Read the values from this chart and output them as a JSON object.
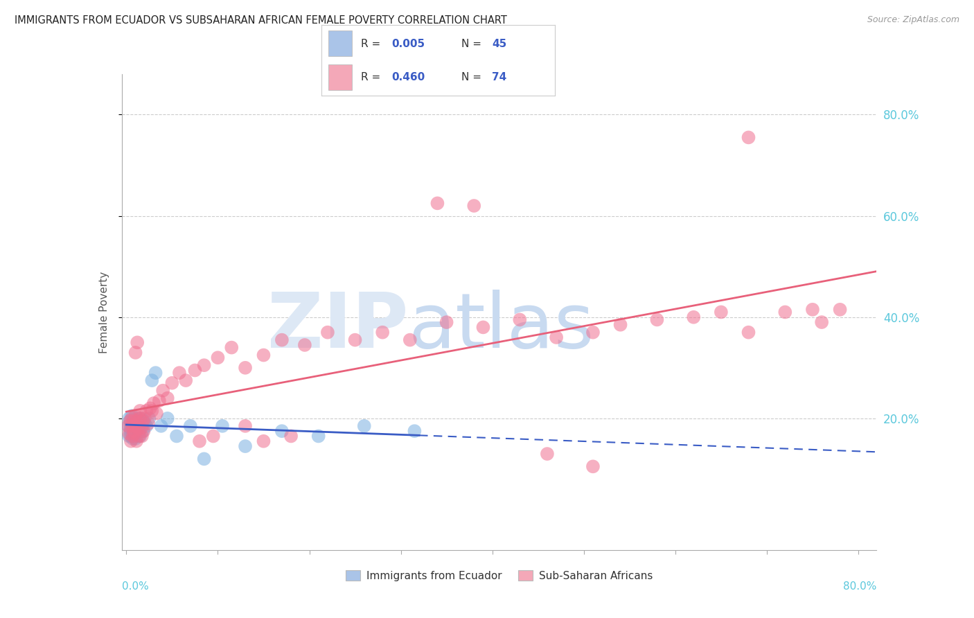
{
  "title": "IMMIGRANTS FROM ECUADOR VS SUBSAHARAN AFRICAN FEMALE POVERTY CORRELATION CHART",
  "source": "Source: ZipAtlas.com",
  "ylabel": "Female Poverty",
  "ytick_vals": [
    0.2,
    0.4,
    0.6,
    0.8
  ],
  "xlim": [
    -0.005,
    0.82
  ],
  "ylim": [
    -0.06,
    0.88
  ],
  "legend_item1_color": "#aac4e8",
  "legend_item2_color": "#f4a8b8",
  "ecuador_color": "#7ab0e0",
  "subsaharan_color": "#f07090",
  "ecuador_line_color": "#3a5cc5",
  "subsaharan_line_color": "#e8607a",
  "right_tick_color": "#5bc8dc",
  "left_tick_color": "#5bc8dc",
  "watermark_zip_color": "#dde8f5",
  "watermark_atlas_color": "#c8daf0",
  "ecuador_x": [
    0.002,
    0.003,
    0.003,
    0.004,
    0.004,
    0.005,
    0.005,
    0.006,
    0.006,
    0.007,
    0.007,
    0.008,
    0.008,
    0.009,
    0.009,
    0.01,
    0.01,
    0.011,
    0.011,
    0.012,
    0.012,
    0.013,
    0.014,
    0.015,
    0.015,
    0.016,
    0.017,
    0.018,
    0.019,
    0.02,
    0.022,
    0.025,
    0.028,
    0.032,
    0.038,
    0.045,
    0.055,
    0.07,
    0.085,
    0.105,
    0.13,
    0.17,
    0.21,
    0.26,
    0.315
  ],
  "ecuador_y": [
    0.185,
    0.165,
    0.2,
    0.175,
    0.195,
    0.165,
    0.185,
    0.175,
    0.205,
    0.16,
    0.19,
    0.17,
    0.2,
    0.165,
    0.195,
    0.16,
    0.19,
    0.175,
    0.195,
    0.165,
    0.2,
    0.185,
    0.175,
    0.195,
    0.165,
    0.2,
    0.185,
    0.175,
    0.195,
    0.19,
    0.185,
    0.2,
    0.275,
    0.29,
    0.185,
    0.2,
    0.165,
    0.185,
    0.12,
    0.185,
    0.145,
    0.175,
    0.165,
    0.185,
    0.175
  ],
  "subsaharan_x": [
    0.002,
    0.003,
    0.004,
    0.005,
    0.006,
    0.006,
    0.007,
    0.008,
    0.008,
    0.009,
    0.01,
    0.01,
    0.011,
    0.012,
    0.013,
    0.014,
    0.015,
    0.015,
    0.016,
    0.017,
    0.018,
    0.019,
    0.02,
    0.022,
    0.024,
    0.026,
    0.028,
    0.03,
    0.033,
    0.036,
    0.04,
    0.045,
    0.05,
    0.058,
    0.065,
    0.075,
    0.085,
    0.1,
    0.115,
    0.13,
    0.15,
    0.17,
    0.195,
    0.22,
    0.25,
    0.28,
    0.31,
    0.35,
    0.39,
    0.43,
    0.47,
    0.51,
    0.54,
    0.58,
    0.62,
    0.65,
    0.68,
    0.72,
    0.75,
    0.76,
    0.78,
    0.68,
    0.34,
    0.38,
    0.51,
    0.46,
    0.01,
    0.012,
    0.18,
    0.15,
    0.095,
    0.13,
    0.08
  ],
  "subsaharan_y": [
    0.185,
    0.17,
    0.195,
    0.155,
    0.185,
    0.2,
    0.165,
    0.195,
    0.175,
    0.17,
    0.185,
    0.205,
    0.155,
    0.195,
    0.18,
    0.165,
    0.2,
    0.215,
    0.18,
    0.165,
    0.195,
    0.175,
    0.2,
    0.215,
    0.19,
    0.22,
    0.215,
    0.23,
    0.21,
    0.235,
    0.255,
    0.24,
    0.27,
    0.29,
    0.275,
    0.295,
    0.305,
    0.32,
    0.34,
    0.3,
    0.325,
    0.355,
    0.345,
    0.37,
    0.355,
    0.37,
    0.355,
    0.39,
    0.38,
    0.395,
    0.36,
    0.37,
    0.385,
    0.395,
    0.4,
    0.41,
    0.37,
    0.41,
    0.415,
    0.39,
    0.415,
    0.755,
    0.625,
    0.62,
    0.105,
    0.13,
    0.33,
    0.35,
    0.165,
    0.155,
    0.165,
    0.185,
    0.155
  ]
}
